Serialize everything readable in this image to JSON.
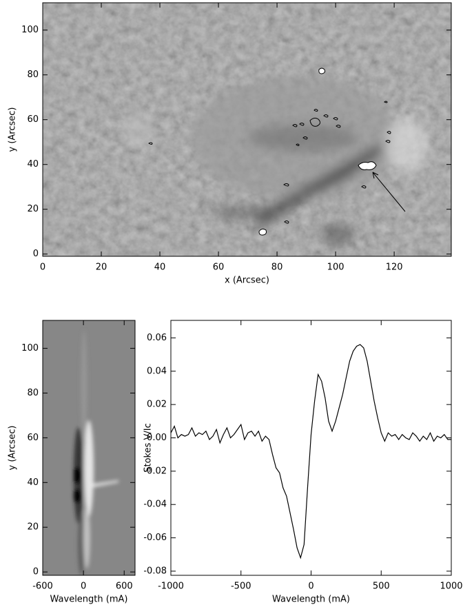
{
  "chart_data": [
    {
      "type": "image",
      "xlabel": "x (Arcsec)",
      "ylabel": "y (Arcsec)",
      "xlim": [
        0,
        139.5
      ],
      "ylim": [
        -1,
        112.2
      ],
      "xticks": [
        0,
        20,
        40,
        60,
        80,
        100,
        120
      ],
      "yticks": [
        0,
        20,
        40,
        60,
        80,
        100
      ]
    },
    {
      "type": "image",
      "xlabel": "Wavelength (mA)",
      "ylabel": "y (Arcsec)",
      "xlim": [
        -600,
        760
      ],
      "ylim": [
        -1.5,
        112.5
      ],
      "xticks": [
        -600,
        0,
        600
      ],
      "yticks": [
        0,
        20,
        40,
        60,
        80,
        100
      ]
    },
    {
      "type": "line",
      "xlabel": "Wavelength (mA)",
      "ylabel": "Stokes V/Ic",
      "color": "#000000",
      "xlim": [
        -1000,
        1000
      ],
      "ylim": [
        -0.0825,
        0.0705
      ],
      "xticks": [
        -1000,
        -500,
        0,
        500,
        1000
      ],
      "yticks": [
        {
          "value": -0.08,
          "label": "-0.08"
        },
        {
          "value": -0.06,
          "label": "-0.06"
        },
        {
          "value": -0.04,
          "label": "-0.04"
        },
        {
          "value": -0.02,
          "label": "-0.02"
        },
        {
          "value": 0,
          "label": "0.00"
        },
        {
          "value": 0.02,
          "label": "0.02"
        },
        {
          "value": 0.04,
          "label": "0.04"
        },
        {
          "value": 0.06,
          "label": "0.06"
        }
      ],
      "x": [
        -1000,
        -975,
        -950,
        -925,
        -900,
        -875,
        -850,
        -825,
        -800,
        -775,
        -750,
        -725,
        -700,
        -675,
        -650,
        -625,
        -600,
        -575,
        -550,
        -525,
        -500,
        -475,
        -450,
        -425,
        -400,
        -375,
        -350,
        -325,
        -300,
        -275,
        -250,
        -225,
        -200,
        -175,
        -150,
        -125,
        -100,
        -75,
        -50,
        -25,
        0,
        25,
        50,
        75,
        100,
        125,
        150,
        175,
        200,
        225,
        250,
        275,
        300,
        325,
        350,
        375,
        400,
        425,
        450,
        475,
        500,
        525,
        550,
        575,
        600,
        625,
        650,
        675,
        700,
        725,
        750,
        775,
        800,
        825,
        850,
        875,
        900,
        925,
        950,
        975,
        1000
      ],
      "values": [
        0.003,
        0.007,
        0.0,
        0.002,
        0.001,
        0.002,
        0.006,
        0.001,
        0.003,
        0.002,
        0.004,
        -0.001,
        0.001,
        0.005,
        -0.003,
        0.002,
        0.006,
        0.0,
        0.002,
        0.005,
        0.008,
        -0.001,
        0.003,
        0.004,
        0.001,
        0.004,
        -0.002,
        0.001,
        -0.001,
        -0.01,
        -0.018,
        -0.021,
        -0.03,
        -0.035,
        -0.045,
        -0.055,
        -0.066,
        -0.072,
        -0.064,
        -0.03,
        0.002,
        0.022,
        0.038,
        0.034,
        0.024,
        0.01,
        0.004,
        0.01,
        0.018,
        0.026,
        0.036,
        0.046,
        0.052,
        0.055,
        0.056,
        0.054,
        0.046,
        0.034,
        0.022,
        0.012,
        0.003,
        -0.002,
        0.003,
        0.001,
        0.002,
        -0.001,
        0.002,
        0.0,
        -0.001,
        0.003,
        0.001,
        -0.002,
        0.001,
        -0.001,
        0.003,
        -0.002,
        0.001,
        0.0,
        0.002,
        -0.001,
        -0.001
      ]
    }
  ]
}
